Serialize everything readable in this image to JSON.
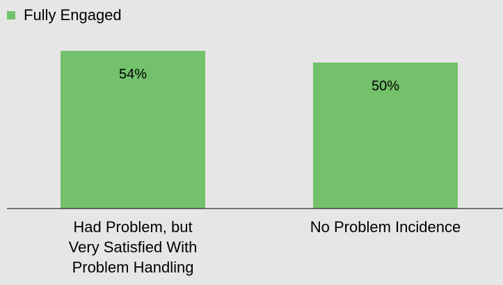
{
  "legend": {
    "label": "Fully Engaged",
    "color": "#74c16b"
  },
  "chart_data": {
    "type": "bar",
    "categories": [
      [
        "Had Problem, but",
        "Very Satisfied With",
        "Problem Handling"
      ],
      [
        "No Problem Incidence"
      ]
    ],
    "series": [
      {
        "name": "Fully Engaged",
        "values": [
          54,
          50
        ],
        "labels": [
          "54%",
          "50%"
        ]
      }
    ],
    "ylim": [
      0,
      60
    ],
    "grid": false,
    "legend_position": "top-left"
  }
}
